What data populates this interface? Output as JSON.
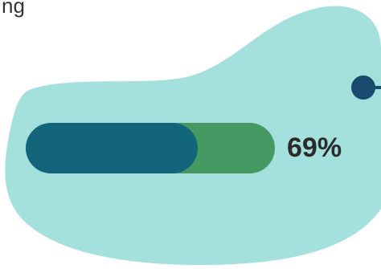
{
  "header": {
    "text": "ng"
  },
  "progress": {
    "value": 0.69,
    "label": "69%"
  },
  "colors": {
    "blob": "#a4e0dc",
    "track": "#479963",
    "fill": "#12657a",
    "connector": "#1a4a6e",
    "label_text": "#2b2b2b"
  }
}
